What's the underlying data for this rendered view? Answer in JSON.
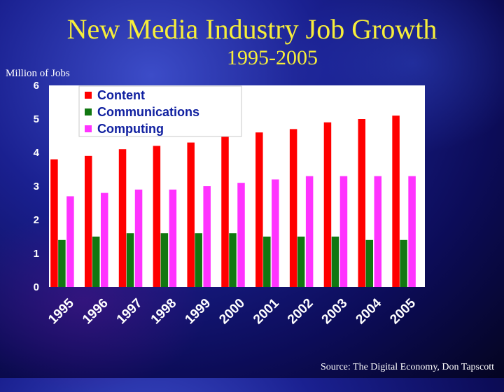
{
  "title": "New Media Industry Job Growth",
  "subtitle": "1995-2005",
  "source": "Source: The Digital Economy, Don Tapscott",
  "colors": {
    "Content": "#ff0000",
    "Communications": "#117711",
    "Computing": "#ff33ff"
  },
  "chart_data": {
    "type": "bar",
    "title": "",
    "ylabel": "Million of Jobs",
    "xlabel": "",
    "ylim": [
      0,
      6
    ],
    "yticks": [
      0,
      1,
      2,
      3,
      4,
      5,
      6
    ],
    "grid": false,
    "legend_position": "top-left",
    "categories": [
      "1995",
      "1996",
      "1997",
      "1998",
      "1999",
      "2000",
      "2001",
      "2002",
      "2003",
      "2004",
      "2005"
    ],
    "series": [
      {
        "name": "Content",
        "values": [
          3.8,
          3.9,
          4.1,
          4.2,
          4.3,
          4.5,
          4.6,
          4.7,
          4.9,
          5.0,
          5.1
        ]
      },
      {
        "name": "Communications",
        "values": [
          1.4,
          1.5,
          1.6,
          1.6,
          1.6,
          1.6,
          1.5,
          1.5,
          1.5,
          1.4,
          1.4
        ]
      },
      {
        "name": "Computing",
        "values": [
          2.7,
          2.8,
          2.9,
          2.9,
          3.0,
          3.1,
          3.2,
          3.3,
          3.3,
          3.3,
          3.3
        ]
      }
    ]
  }
}
